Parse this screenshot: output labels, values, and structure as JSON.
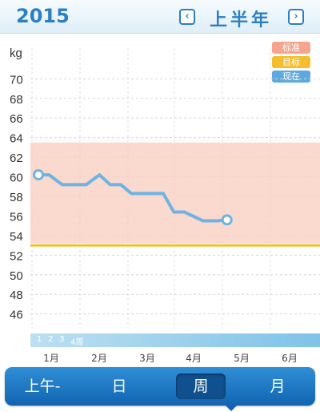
{
  "header": {
    "year": "2015",
    "period": "上半年",
    "prev_icon": "chevron-left-icon",
    "next_icon": "chevron-right-icon"
  },
  "legend": [
    {
      "label": "标准",
      "color": "#f7a48f"
    },
    {
      "label": "目标",
      "color": "#f4be2e"
    },
    {
      "label": "现在",
      "color": "#5da9dd"
    }
  ],
  "chart_data": {
    "type": "line",
    "ylabel": "kg",
    "yticks": [
      46,
      48,
      50,
      52,
      54,
      56,
      58,
      60,
      62,
      64,
      66,
      68,
      70
    ],
    "ylim": [
      44.5,
      71.5
    ],
    "xlim": [
      0,
      1
    ],
    "xticks": [
      "1月",
      "2月",
      "3月",
      "4月",
      "5月",
      "6月"
    ],
    "standard_range": [
      53.2,
      63.5
    ],
    "target": 53,
    "grid": true,
    "series": [
      {
        "name": "现在",
        "color": "#6fb3e3",
        "x": [
          0.0,
          0.04,
          0.09,
          0.18,
          0.23,
          0.27,
          0.31,
          0.35,
          0.47,
          0.51,
          0.55,
          0.62,
          0.67,
          0.71
        ],
        "values": [
          60.2,
          60.2,
          59.2,
          59.2,
          60.2,
          59.2,
          59.2,
          58.3,
          58.3,
          56.4,
          56.4,
          55.5,
          55.5,
          55.6
        ]
      }
    ]
  },
  "week_strip": {
    "labels": [
      "1",
      "2",
      "3",
      "4周"
    ]
  },
  "tabs": [
    {
      "label": "上午-",
      "active": false
    },
    {
      "label": "日",
      "active": false
    },
    {
      "label": "周",
      "active": true
    },
    {
      "label": "月",
      "active": false
    }
  ]
}
